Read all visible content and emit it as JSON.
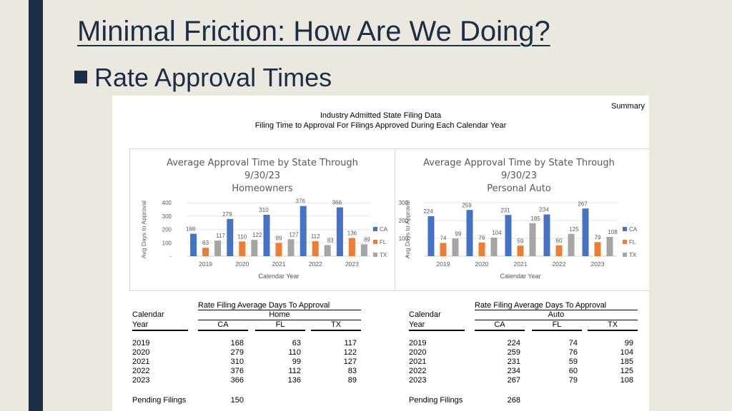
{
  "slide": {
    "title": "Minimal Friction: How Are We Doing?",
    "bullet": "Rate Approval Times"
  },
  "panel": {
    "summary": "Summary",
    "header_line1": "Industry Admitted State Filing Data",
    "header_line2": "Filing Time to Approval For Filings Approved During Each Calendar Year"
  },
  "colors": {
    "CA": "#4472c4",
    "FL": "#ed7d31",
    "TX": "#a5a5a5"
  },
  "chart_data": [
    {
      "type": "bar",
      "title": [
        "Average Approval Time by State Through",
        "9/30/23",
        "Homeowners"
      ],
      "xlabel": "Calendar Year",
      "ylabel": "Avg Days to Approval",
      "categories": [
        "2019",
        "2020",
        "2021",
        "2022",
        "2023"
      ],
      "yticks": [
        0,
        100,
        200,
        300,
        400
      ],
      "ytick_labels": [
        "-",
        "100",
        "200",
        "300",
        "400"
      ],
      "ylim": [
        0,
        400
      ],
      "legend": "right",
      "series": [
        {
          "name": "CA",
          "values": [
            168,
            279,
            310,
            376,
            366
          ]
        },
        {
          "name": "FL",
          "values": [
            63,
            110,
            99,
            112,
            136
          ]
        },
        {
          "name": "TX",
          "values": [
            117,
            122,
            127,
            83,
            89
          ]
        }
      ]
    },
    {
      "type": "bar",
      "title": [
        "Average Approval Time by State Through",
        "9/30/23",
        "Personal Auto"
      ],
      "xlabel": "Calendar Year",
      "ylabel": "Avg Days to Approval",
      "categories": [
        "2019",
        "2020",
        "2021",
        "2022",
        "2023"
      ],
      "yticks": [
        0,
        100,
        200,
        300
      ],
      "ytick_labels": [
        "-",
        "100",
        "200",
        "300"
      ],
      "ylim": [
        0,
        300
      ],
      "legend": "right",
      "series": [
        {
          "name": "CA",
          "values": [
            224,
            259,
            231,
            234,
            267
          ]
        },
        {
          "name": "FL",
          "values": [
            74,
            76,
            59,
            60,
            79
          ]
        },
        {
          "name": "TX",
          "values": [
            99,
            104,
            185,
            125,
            108
          ]
        }
      ]
    }
  ],
  "tables": [
    {
      "caption": "Rate Filing Average Days To Approval",
      "line": "Home",
      "year_label_1": "Calendar",
      "year_label_2": "Year",
      "cols": [
        "CA",
        "FL",
        "TX"
      ],
      "rows": [
        [
          "2019",
          "168",
          "63",
          "117"
        ],
        [
          "2020",
          "279",
          "110",
          "122"
        ],
        [
          "2021",
          "310",
          "99",
          "127"
        ],
        [
          "2022",
          "376",
          "112",
          "83"
        ],
        [
          "2023",
          "366",
          "136",
          "89"
        ]
      ],
      "pending_label": "Pending Filings",
      "pending_value": "150"
    },
    {
      "caption": "Rate Filing Average Days To Approval",
      "line": "Auto",
      "year_label_1": "Calendar",
      "year_label_2": "Year",
      "cols": [
        "CA",
        "FL",
        "TX"
      ],
      "rows": [
        [
          "2019",
          "224",
          "74",
          "99"
        ],
        [
          "2020",
          "259",
          "76",
          "104"
        ],
        [
          "2021",
          "231",
          "59",
          "185"
        ],
        [
          "2022",
          "234",
          "60",
          "125"
        ],
        [
          "2023",
          "267",
          "79",
          "108"
        ]
      ],
      "pending_label": "Pending Filings",
      "pending_value": "268"
    }
  ]
}
